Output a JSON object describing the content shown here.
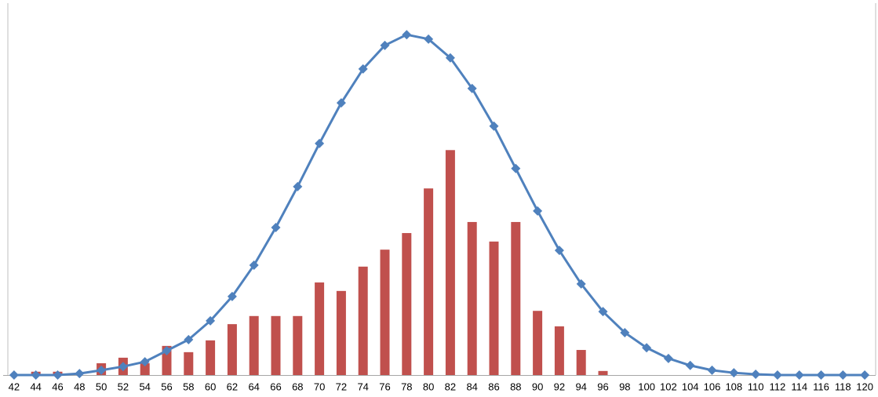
{
  "chart_data": {
    "type": "bar_line",
    "categories": [
      "42",
      "44",
      "46",
      "48",
      "50",
      "52",
      "54",
      "56",
      "58",
      "60",
      "62",
      "64",
      "66",
      "68",
      "70",
      "72",
      "74",
      "76",
      "78",
      "80",
      "82",
      "84",
      "86",
      "88",
      "90",
      "92",
      "94",
      "96",
      "98",
      "100",
      "102",
      "104",
      "106",
      "108",
      "110",
      "112",
      "114",
      "116",
      "118",
      "120"
    ],
    "series": [
      {
        "type": "bar",
        "color": "#c0504d",
        "values": [
          0,
          0.9,
          0.9,
          0,
          3.2,
          4.7,
          3.2,
          7.9,
          6.2,
          9.4,
          13.8,
          16,
          16,
          16,
          25.1,
          22.8,
          29.4,
          34,
          38.5,
          50.6,
          61,
          41.5,
          36.2,
          41.5,
          17.4,
          13.2,
          6.8,
          1.1,
          0,
          0,
          0,
          0,
          0,
          0,
          0,
          0,
          0,
          0,
          0,
          0
        ]
      },
      {
        "type": "line",
        "color": "#4f81bd",
        "values": [
          0,
          0,
          0,
          0.4,
          1.3,
          2.3,
          3.6,
          6.6,
          9.6,
          14.7,
          21.3,
          29.8,
          40,
          51.1,
          62.8,
          73.8,
          83,
          89.4,
          92.3,
          91.1,
          86,
          77.7,
          67.5,
          56,
          44.5,
          33.8,
          24.7,
          17.2,
          11.5,
          7.4,
          4.5,
          2.6,
          1.3,
          0.6,
          0.2,
          0,
          0,
          0,
          0,
          0
        ]
      }
    ],
    "ylim": [
      0,
      100
    ]
  }
}
